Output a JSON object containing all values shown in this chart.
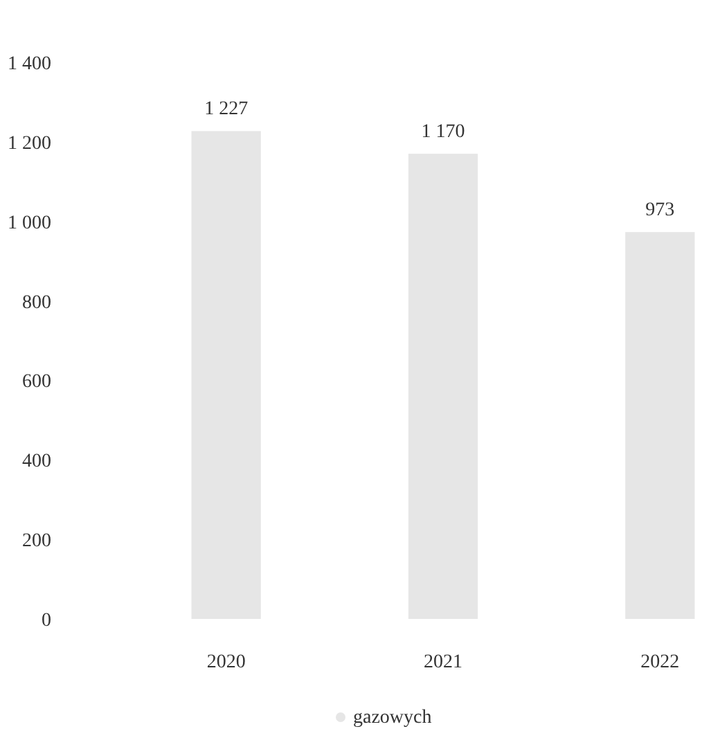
{
  "chart_data": {
    "type": "bar",
    "categories": [
      "2020",
      "2021",
      "2022"
    ],
    "series": [
      {
        "name": "gazowych",
        "color": "#e6e6e6",
        "values": [
          1227,
          1170,
          973
        ]
      }
    ],
    "value_labels": [
      "1 227",
      "1 170",
      "973"
    ],
    "ylim": [
      0,
      1400
    ],
    "yticks": [
      0,
      {
        "value": 200,
        "label": "200"
      },
      {
        "value": 400,
        "label": "400"
      },
      {
        "value": 600,
        "label": "600"
      },
      {
        "value": 800,
        "label": "800"
      },
      {
        "value": 1000,
        "label": "1 000"
      },
      {
        "value": 1200,
        "label": "1 200"
      },
      {
        "value": 1400,
        "label": "1 400"
      }
    ],
    "legend": "bottom"
  }
}
